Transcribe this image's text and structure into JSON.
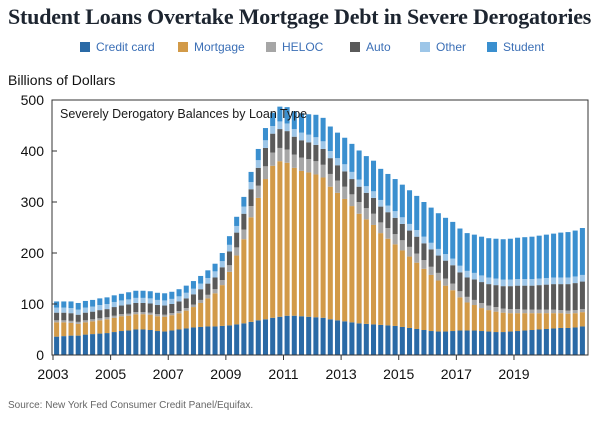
{
  "page": {
    "title": "Student Loans Overtake Mortgage Debt in Severe Derogatories",
    "ylabel": "Billions of Dollars",
    "source": "Source: New York Fed Consumer Credit Panel/Equifax."
  },
  "colors": {
    "Credit card": "#2a6aa6",
    "Mortgage": "#d29a48",
    "HELOC": "#a6a6a6",
    "Auto": "#5a5a5a",
    "Other": "#9dc6e8",
    "Student": "#3a8fcf"
  },
  "chart_data": {
    "type": "bar",
    "stacked": true,
    "title": "Severely Derogatory Balances by Loan Type",
    "ylabel": "Billions of Dollars",
    "ylim": [
      0,
      500
    ],
    "yticks": [
      0,
      100,
      200,
      300,
      400,
      500
    ],
    "xticks": [
      "2003",
      "2005",
      "2007",
      "2009",
      "2011",
      "2013",
      "2015",
      "2017",
      "2019"
    ],
    "legend_position": "top",
    "grid": false,
    "series": [
      {
        "name": "Credit card",
        "values": [
          36,
          37,
          38,
          38,
          40,
          41,
          42,
          43,
          45,
          47,
          48,
          50,
          50,
          49,
          47,
          46,
          48,
          50,
          52,
          54,
          55,
          56,
          56,
          57,
          58,
          60,
          62,
          65,
          68,
          70,
          73,
          75,
          77,
          77,
          76,
          75,
          74,
          73,
          70,
          68,
          66,
          64,
          62,
          61,
          60,
          59,
          58,
          57,
          55,
          53,
          51,
          49,
          47,
          46,
          46,
          47,
          48,
          48,
          48,
          47,
          46,
          45,
          45,
          46,
          47,
          48,
          49,
          50,
          51,
          52,
          53,
          53,
          54,
          56
        ]
      },
      {
        "name": "Mortgage",
        "values": [
          28,
          27,
          25,
          23,
          24,
          25,
          26,
          27,
          28,
          29,
          29,
          30,
          30,
          30,
          29,
          29,
          30,
          32,
          35,
          40,
          47,
          55,
          65,
          80,
          105,
          135,
          165,
          205,
          240,
          275,
          298,
          305,
          300,
          290,
          285,
          283,
          280,
          275,
          260,
          250,
          240,
          228,
          215,
          205,
          195,
          180,
          170,
          160,
          150,
          140,
          130,
          120,
          110,
          100,
          90,
          80,
          65,
          55,
          50,
          45,
          42,
          40,
          38,
          36,
          35,
          34,
          33,
          32,
          31,
          30,
          29,
          28,
          28,
          28
        ]
      },
      {
        "name": "HELOC",
        "values": [
          4,
          4,
          4,
          4,
          4,
          4,
          4,
          4,
          4,
          4,
          4,
          4,
          4,
          4,
          4,
          4,
          4,
          4,
          5,
          5,
          6,
          7,
          8,
          10,
          13,
          16,
          19,
          22,
          24,
          25,
          26,
          26,
          26,
          26,
          26,
          26,
          26,
          25,
          25,
          24,
          24,
          23,
          23,
          22,
          22,
          21,
          21,
          20,
          20,
          19,
          18,
          17,
          16,
          15,
          14,
          13,
          12,
          11,
          10,
          10,
          9,
          9,
          8,
          8,
          8,
          7,
          7,
          7,
          7,
          7,
          6,
          6,
          6,
          6
        ]
      },
      {
        "name": "Auto",
        "values": [
          15,
          15,
          15,
          14,
          15,
          15,
          16,
          16,
          17,
          17,
          18,
          18,
          18,
          18,
          18,
          18,
          18,
          19,
          19,
          20,
          21,
          22,
          23,
          25,
          27,
          29,
          31,
          33,
          35,
          36,
          37,
          37,
          36,
          35,
          34,
          33,
          32,
          31,
          31,
          30,
          30,
          30,
          30,
          30,
          31,
          31,
          31,
          32,
          32,
          32,
          33,
          33,
          34,
          34,
          35,
          36,
          37,
          38,
          40,
          41,
          42,
          43,
          44,
          45,
          46,
          47,
          47,
          48,
          49,
          50,
          51,
          52,
          53,
          54
        ]
      },
      {
        "name": "Other",
        "values": [
          10,
          10,
          10,
          10,
          10,
          10,
          10,
          10,
          10,
          10,
          10,
          10,
          10,
          10,
          10,
          10,
          10,
          10,
          11,
          11,
          11,
          11,
          12,
          12,
          13,
          13,
          14,
          14,
          15,
          15,
          15,
          15,
          15,
          15,
          15,
          15,
          15,
          15,
          14,
          14,
          14,
          14,
          14,
          13,
          13,
          13,
          13,
          13,
          13,
          13,
          13,
          13,
          13,
          13,
          13,
          13,
          13,
          13,
          13,
          13,
          13,
          13,
          13,
          13,
          13,
          13,
          13,
          13,
          13,
          13,
          13,
          13,
          13,
          13
        ]
      },
      {
        "name": "Student",
        "values": [
          12,
          12,
          13,
          13,
          13,
          13,
          13,
          13,
          13,
          13,
          14,
          14,
          14,
          14,
          14,
          14,
          14,
          14,
          14,
          15,
          15,
          15,
          15,
          16,
          17,
          18,
          19,
          20,
          22,
          24,
          26,
          29,
          32,
          35,
          38,
          40,
          44,
          46,
          48,
          50,
          52,
          55,
          57,
          59,
          60,
          61,
          62,
          63,
          64,
          66,
          67,
          68,
          69,
          70,
          71,
          72,
          73,
          74,
          75,
          76,
          77,
          78,
          79,
          80,
          81,
          82,
          83,
          84,
          85,
          86,
          88,
          89,
          90,
          92
        ]
      }
    ]
  }
}
